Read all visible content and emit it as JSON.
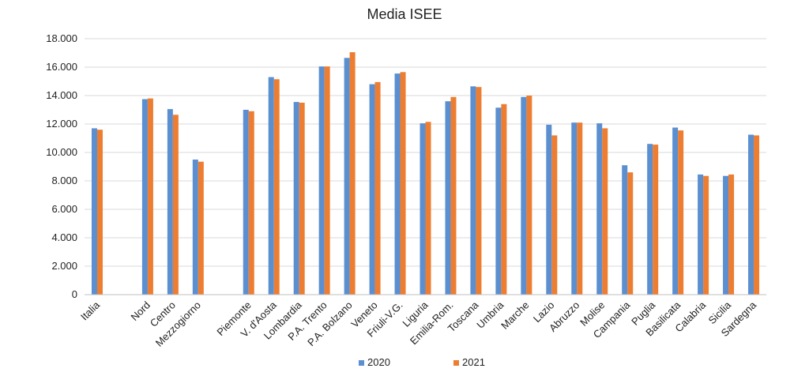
{
  "chart_data": {
    "type": "bar",
    "title": "Media ISEE",
    "xlabel": "",
    "ylabel": "",
    "ylim": [
      0,
      18000
    ],
    "ytick_values": [
      0,
      2000,
      4000,
      6000,
      8000,
      10000,
      12000,
      14000,
      16000,
      18000
    ],
    "ytick_labels": [
      "0",
      "2.000",
      "4.000",
      "6.000",
      "8.000",
      "10.000",
      "12.000",
      "14.000",
      "16.000",
      "18.000"
    ],
    "grid": "horizontal",
    "legend_position": "bottom",
    "categories": [
      "Italia",
      "",
      "Nord",
      "Centro",
      "Mezzogiorno",
      "",
      "Piemonte",
      "V. d'Aosta",
      "Lombardia",
      "P.A. Trento",
      "P.A. Bolzano",
      "Veneto",
      "Friuli-V.G.",
      "Liguria",
      "Emilia-Rom.",
      "Toscana",
      "Umbria",
      "Marche",
      "Lazio",
      "Abruzzo",
      "Molise",
      "Campania",
      "Puglia",
      "Basilicata",
      "Calabria",
      "Sicilia",
      "Sardegna"
    ],
    "series": [
      {
        "name": "2020",
        "color": "#5B8FD0",
        "values": [
          11700,
          null,
          13750,
          13050,
          9500,
          null,
          13000,
          15300,
          13550,
          16050,
          16650,
          14800,
          15550,
          12050,
          13600,
          14650,
          13150,
          13900,
          11950,
          12100,
          12050,
          9100,
          10600,
          11750,
          8450,
          8350,
          11250
        ]
      },
      {
        "name": "2021",
        "color": "#ED7D31",
        "values": [
          11600,
          null,
          13800,
          12650,
          9350,
          null,
          12900,
          15150,
          13500,
          16050,
          17050,
          14950,
          15650,
          12150,
          13900,
          14600,
          13400,
          14000,
          11200,
          12100,
          11700,
          8600,
          10550,
          11550,
          8350,
          8450,
          11200
        ]
      }
    ]
  }
}
